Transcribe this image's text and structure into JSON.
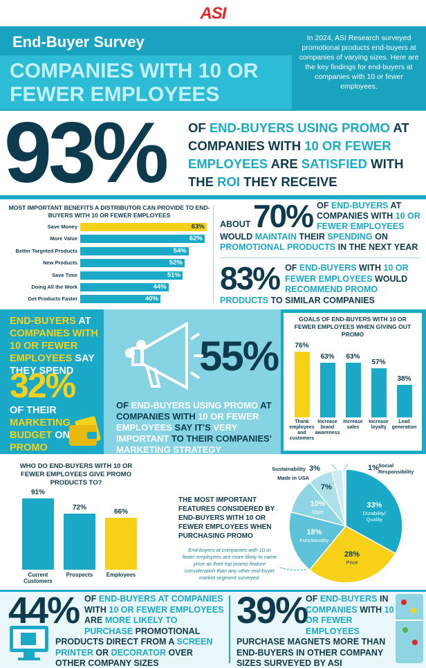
{
  "logo": "ASI",
  "header": {
    "kicker": "End-Buyer Survey",
    "title": "COMPANIES WITH 10 OR FEWER EMPLOYEES",
    "intro": "In 2024, ASI Research surveyed promotional products end-buyers at companies of varying sizes. Here are the key findings for end-buyers at companies with 10 or fewer employees."
  },
  "stat_satisfied": {
    "value": "93%",
    "text": [
      "OF ",
      {
        "text": "END-BUYERS USING PROMO",
        "color": "#1aa9c6"
      },
      " AT COMPANIES WITH ",
      {
        "text": "10 OR FEWER EMPLOYEES",
        "color": "#1aa9c6"
      },
      " ARE ",
      {
        "text": "SATISFIED",
        "color": "#1aa9c6"
      },
      " WITH THE ",
      {
        "text": "ROI",
        "color": "#1aa9c6"
      },
      " THEY RECEIVE"
    ]
  },
  "stat_maintain": {
    "prefix": "ABOUT",
    "value": "70%",
    "text": [
      "OF ",
      {
        "text": "END-BUYERS",
        "color": "#1aa9c6"
      },
      " AT COMPANIES WITH ",
      {
        "text": "10 OR FEWER EMPLOYEES",
        "color": "#1aa9c6"
      },
      " WOULD ",
      {
        "text": "MAINTAIN",
        "color": "#1aa9c6"
      },
      " THEIR ",
      {
        "text": "SPENDING",
        "color": "#1aa9c6"
      },
      " ON ",
      {
        "text": "PROMOTIONAL PRODUCTS",
        "color": "#1aa9c6"
      },
      " IN THE NEXT YEAR"
    ]
  },
  "stat_recommend": {
    "value": "83%",
    "text": [
      "OF ",
      {
        "text": "END-BUYERS",
        "color": "#1aa9c6"
      },
      " WITH ",
      {
        "text": "10 OR FEWER EMPLOYEES",
        "color": "#1aa9c6"
      },
      " WOULD ",
      {
        "text": "RECOMMEND PROMO PRODUCTS",
        "color": "#1aa9c6"
      },
      " TO SIMILAR COMPANIES"
    ]
  },
  "stat_budget": {
    "intro": [
      {
        "text": "END-BUYERS",
        "color": "#f7d117"
      },
      " AT ",
      {
        "text": "COMPANIES WITH 10 OR FEWER EMPLOYEES",
        "color": "#f7d117"
      },
      " SAY THEY SPEND"
    ],
    "value": "32%",
    "text": [
      "OF THEIR ",
      {
        "text": "MARKETING BUDGET",
        "color": "#f7d117"
      },
      " ON ",
      {
        "text": "PROMO",
        "color": "#f7d117"
      }
    ]
  },
  "stat_strategy": {
    "value": "55%",
    "text": [
      "OF ",
      {
        "text": "END-BUYERS USING PROMO",
        "color": "#ffffff"
      },
      " AT COMPANIES WITH ",
      {
        "text": "10 OR FEWER EMPLOYEES",
        "color": "#ffffff"
      },
      " SAY IT'S ",
      {
        "text": "VERY IMPORTANT",
        "color": "#ffffff"
      },
      " TO THEIR COMPANIES' ",
      {
        "text": "MARKETING STRATEGY",
        "color": "#ffffff"
      }
    ]
  },
  "stat_direct": {
    "value": "44%",
    "text": [
      "OF ",
      {
        "text": "END-BUYERS AT COMPANIES",
        "color": "#1aa9c6"
      },
      " WITH ",
      {
        "text": "10 OR FEWER EMPLOYEES",
        "color": "#1aa9c6"
      },
      " ARE ",
      {
        "text": "MORE LIKELY TO PURCHASE",
        "color": "#1aa9c6"
      },
      " PROMOTIONAL PRODUCTS DIRECT FROM A ",
      {
        "text": "SCREEN PRINTER",
        "color": "#1aa9c6"
      },
      " OR ",
      {
        "text": "DECORATOR",
        "color": "#1aa9c6"
      },
      " OVER OTHER COMPANY SIZES"
    ]
  },
  "stat_magnets": {
    "value": "39%",
    "text": [
      "OF ",
      {
        "text": "END-BUYERS",
        "color": "#1aa9c6"
      },
      " IN ",
      {
        "text": "COMPANIES",
        "color": "#1aa9c6"
      },
      " WITH ",
      {
        "text": "10 OR FEWER EMPLOYEES",
        "color": "#1aa9c6"
      },
      " PURCHASE MAGNETS MORE THAN END-BUYERS IN OTHER COMPANY SIZES SURVEYED BY ASI"
    ]
  },
  "chart_data": [
    {
      "type": "hbar",
      "title": "MOST IMPORTANT BENEFITS A DISTRIBUTOR CAN PROVIDE TO END-BUYERS WITH 10 OR FEWER EMPLOYEES",
      "categories": [
        "Save Money",
        "More Value",
        "Better Targeted Products",
        "New Products",
        "Save Time",
        "Doing All the Work",
        "Get Products Faster"
      ],
      "values": [
        63,
        62,
        54,
        52,
        51,
        44,
        40
      ],
      "value_labels": [
        "63%",
        "62%",
        "54%",
        "52%",
        "51%",
        "44%",
        "40%"
      ],
      "colors": [
        "#f7d117",
        "#1aa9c6",
        "#1aa9c6",
        "#1aa9c6",
        "#1aa9c6",
        "#1aa9c6",
        "#1aa9c6"
      ]
    },
    {
      "type": "bar",
      "title": "GOALS OF END-BUYERS WITH 10 OR FEWER EMPLOYEES WHEN GIVING OUT PROMO",
      "categories": [
        "Thank employees and customers",
        "Increase brand awareness",
        "Increase sales",
        "Increase loyalty",
        "Lead generation"
      ],
      "values": [
        76,
        63,
        63,
        57,
        38
      ],
      "value_labels": [
        "76%",
        "63%",
        "63%",
        "57%",
        "38%"
      ],
      "colors": [
        "#f7d117",
        "#1aa9c6",
        "#1aa9c6",
        "#1aa9c6",
        "#1aa9c6"
      ]
    },
    {
      "type": "bar",
      "title": "WHO DO END-BUYERS WITH 10 OR FEWER EMPLOYEES GIVE PROMO PRODUCTS TO?",
      "categories": [
        "Current Customers",
        "Prospects",
        "Employees"
      ],
      "values": [
        91,
        72,
        66
      ],
      "value_labels": [
        "91%",
        "72%",
        "66%"
      ],
      "colors": [
        "#1aa9c6",
        "#1aa9c6",
        "#f7d117"
      ]
    },
    {
      "type": "pie",
      "title": "THE MOST IMPORTANT FEATURES CONSIDERED BY END-BUYERS WITH 10 OR FEWER EMPLOYEES WHEN PURCHASING PROMO",
      "categories": [
        "Durability/ Quality",
        "Price",
        "Functionality",
        "Style",
        "Made in USA",
        "Sustainability",
        "Social Responsibility"
      ],
      "values": [
        33,
        28,
        18,
        10,
        7,
        3,
        1
      ],
      "value_labels": [
        "33%",
        "28%",
        "18%",
        "10%",
        "7%",
        "3%",
        "1%"
      ],
      "colors": [
        "#1aa9c6",
        "#f7d117",
        "#5ec3d8",
        "#8fd4e3",
        "#aee0ea",
        "#cdebf2",
        "#e3f4f8"
      ],
      "note": "End-buyers at companies with 10 or fewer employees are more likely to name price as their top promo feature consideration than any other end-buyer market segment surveyed."
    }
  ]
}
